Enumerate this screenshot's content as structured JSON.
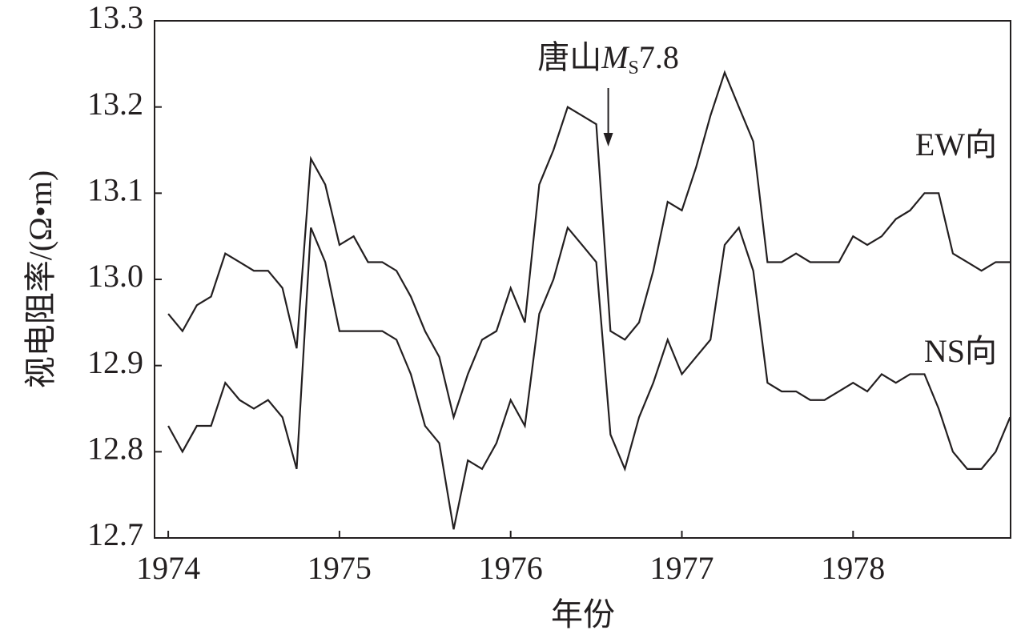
{
  "chart_data": {
    "type": "line",
    "xlabel": "年份",
    "ylabel": "视电阻率/(Ω•m)",
    "x": [
      1974,
      1974.083,
      1974.167,
      1974.25,
      1974.333,
      1974.417,
      1974.5,
      1974.583,
      1974.667,
      1974.75,
      1974.833,
      1974.917,
      1975,
      1975.083,
      1975.167,
      1975.25,
      1975.333,
      1975.417,
      1975.5,
      1975.583,
      1975.667,
      1975.75,
      1975.833,
      1975.917,
      1976,
      1976.083,
      1976.167,
      1976.25,
      1976.333,
      1976.417,
      1976.5,
      1976.583,
      1976.667,
      1976.75,
      1976.833,
      1976.917,
      1977,
      1977.083,
      1977.167,
      1977.25,
      1977.333,
      1977.417,
      1977.5,
      1977.583,
      1977.667,
      1977.75,
      1977.833,
      1977.917,
      1978,
      1978.083,
      1978.167,
      1978.25,
      1978.333,
      1978.417,
      1978.5,
      1978.583,
      1978.667,
      1978.75,
      1978.833,
      1978.917
    ],
    "series": [
      {
        "name": "EW向",
        "color": "#231f20",
        "values": [
          12.96,
          12.94,
          12.97,
          12.98,
          13.03,
          13.02,
          13.01,
          13.01,
          12.99,
          12.92,
          13.14,
          13.11,
          13.04,
          13.05,
          13.02,
          13.02,
          13.01,
          12.98,
          12.94,
          12.91,
          12.84,
          12.89,
          12.93,
          12.94,
          12.99,
          12.95,
          13.11,
          13.15,
          13.2,
          13.19,
          13.18,
          12.94,
          12.93,
          12.95,
          13.01,
          13.09,
          13.08,
          13.13,
          13.19,
          13.24,
          13.2,
          13.16,
          13.02,
          13.02,
          13.03,
          13.02,
          13.02,
          13.02,
          13.05,
          13.04,
          13.05,
          13.07,
          13.08,
          13.1,
          13.1,
          13.03,
          13.02,
          13.01,
          13.02,
          13.02
        ]
      },
      {
        "name": "NS向",
        "color": "#231f20",
        "values": [
          12.83,
          12.8,
          12.83,
          12.83,
          12.88,
          12.86,
          12.85,
          12.86,
          12.84,
          12.78,
          13.06,
          13.02,
          12.94,
          12.94,
          12.94,
          12.94,
          12.93,
          12.89,
          12.83,
          12.81,
          12.71,
          12.79,
          12.78,
          12.81,
          12.86,
          12.83,
          12.96,
          13.0,
          13.06,
          13.04,
          13.02,
          12.82,
          12.78,
          12.84,
          12.88,
          12.93,
          12.89,
          12.91,
          12.93,
          13.04,
          13.06,
          13.01,
          12.88,
          12.87,
          12.87,
          12.86,
          12.86,
          12.87,
          12.88,
          12.87,
          12.89,
          12.88,
          12.89,
          12.89,
          12.85,
          12.8,
          12.78,
          12.78,
          12.8,
          12.84
        ]
      }
    ],
    "annotation": {
      "label": "唐山",
      "symbol": "M",
      "subscript": "S",
      "magnitude": "7.8",
      "x": 1976.57
    },
    "xlim": [
      1973.92,
      1978.92
    ],
    "xticks": [
      1974,
      1975,
      1976,
      1977,
      1978
    ],
    "ylim": [
      12.7,
      13.3
    ],
    "yticks": [
      12.7,
      12.8,
      12.9,
      {
        "value": 13,
        "label": "13.0"
      },
      13.1,
      13.2,
      13.3
    ]
  }
}
